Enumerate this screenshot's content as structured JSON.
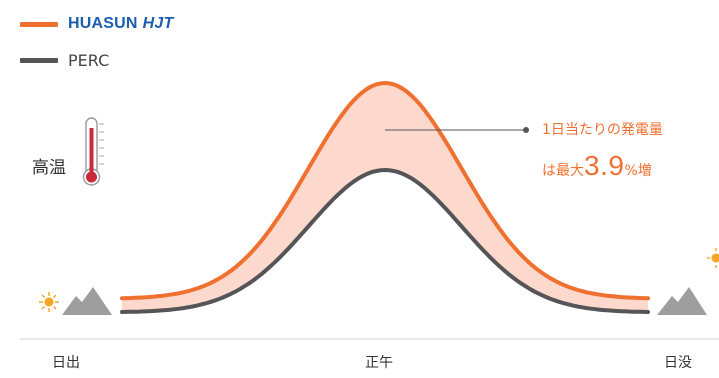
{
  "legend": {
    "hjt_brand": "HUASUN",
    "hjt_suffix": "HJT",
    "perc": "PERC"
  },
  "temperature_label": "高温",
  "annotation": {
    "line1": "1日当たりの発電量",
    "prefix": "は最大",
    "value": "3.9",
    "suffix": "%増"
  },
  "colors": {
    "hjt": "#f07030",
    "perc": "#555558",
    "band": "#fcd9cc",
    "mountain": "#9e9e9e",
    "sun": "#f5a623",
    "thermometer_red": "#c8283a"
  },
  "chart_data": {
    "type": "line",
    "categories": [
      "日出",
      "正午",
      "日没"
    ],
    "series": [
      {
        "name": "HUASUN HJT",
        "values": [
          0.06,
          1.0,
          0.06
        ]
      },
      {
        "name": "PERC",
        "values": [
          0.0,
          0.62,
          0.0
        ]
      }
    ],
    "ylim": [
      0,
      1
    ],
    "grid": false,
    "legend_position": "top-left",
    "shaded_gap": true,
    "annotation": "1日当たりの発電量は最大3.9%増"
  }
}
